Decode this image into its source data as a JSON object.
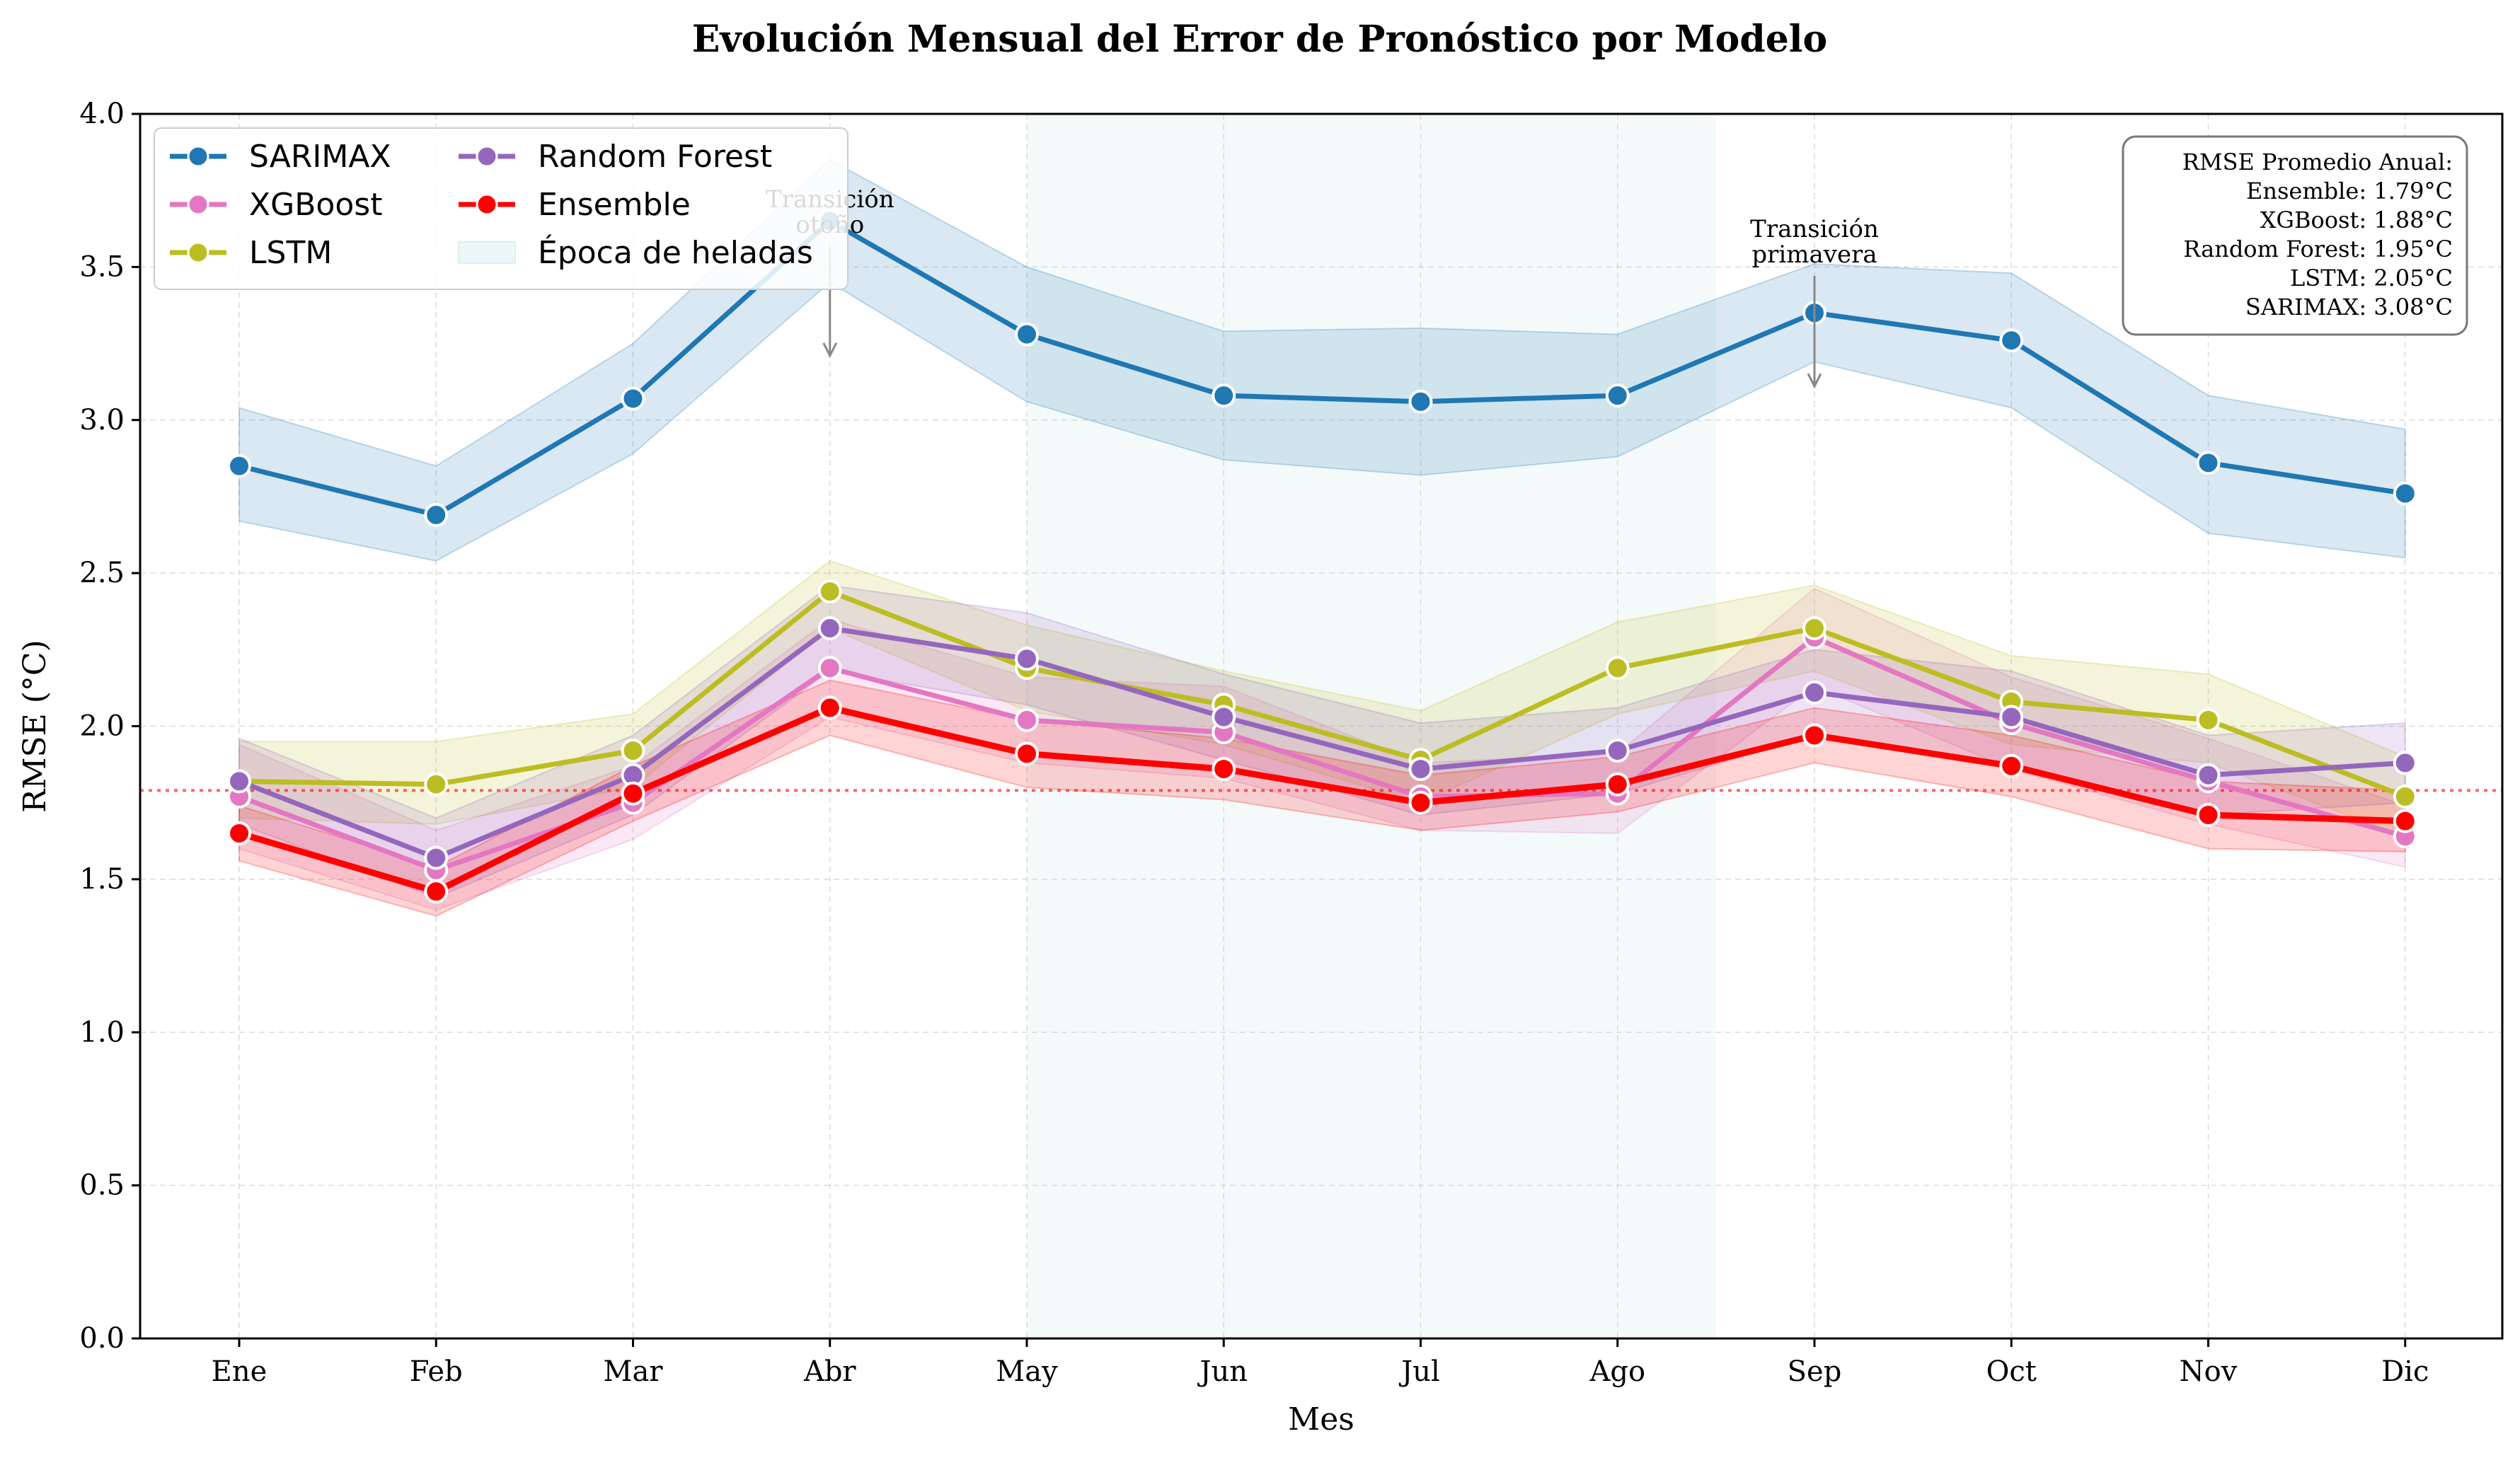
{
  "chart_data": {
    "type": "line",
    "title": "Evolución Mensual del Error de Pronóstico por Modelo",
    "xlabel": "Mes",
    "ylabel": "RMSE (°C)",
    "categories": [
      "Ene",
      "Feb",
      "Mar",
      "Abr",
      "May",
      "Jun",
      "Jul",
      "Ago",
      "Sep",
      "Oct",
      "Nov",
      "Dic"
    ],
    "ylim": [
      0,
      4.0
    ],
    "yticks": [
      "0.0",
      "0.5",
      "1.0",
      "1.5",
      "2.0",
      "2.5",
      "3.0",
      "3.5",
      "4.0"
    ],
    "grid": true,
    "legend_position": "top-left",
    "series": [
      {
        "name": "SARIMAX",
        "color": "#1f77b4",
        "values": [
          2.85,
          2.69,
          3.07,
          3.65,
          3.28,
          3.08,
          3.06,
          3.08,
          3.35,
          3.26,
          2.86,
          2.76
        ],
        "lower": [
          2.67,
          2.54,
          2.89,
          3.45,
          3.06,
          2.87,
          2.82,
          2.88,
          3.19,
          3.04,
          2.63,
          2.55
        ],
        "upper": [
          3.04,
          2.85,
          3.25,
          3.85,
          3.5,
          3.29,
          3.3,
          3.28,
          3.51,
          3.48,
          3.08,
          2.97
        ]
      },
      {
        "name": "XGBoost",
        "color": "#e377c2",
        "values": [
          1.77,
          1.53,
          1.75,
          2.19,
          2.02,
          1.98,
          1.77,
          1.78,
          2.29,
          2.01,
          1.82,
          1.64
        ],
        "lower": [
          1.6,
          1.4,
          1.63,
          2.03,
          1.88,
          1.83,
          1.66,
          1.65,
          2.13,
          1.86,
          1.68,
          1.54
        ],
        "upper": [
          1.94,
          1.66,
          1.87,
          2.35,
          2.16,
          2.13,
          1.88,
          1.91,
          2.45,
          2.16,
          1.96,
          1.74
        ]
      },
      {
        "name": "LSTM",
        "color": "#bcbd22",
        "values": [
          1.82,
          1.81,
          1.92,
          2.44,
          2.19,
          2.07,
          1.89,
          2.19,
          2.32,
          2.08,
          2.02,
          1.77
        ],
        "lower": [
          1.7,
          1.68,
          1.8,
          2.32,
          2.05,
          1.94,
          1.75,
          2.04,
          2.18,
          1.94,
          1.88,
          1.64
        ],
        "upper": [
          1.95,
          1.95,
          2.04,
          2.54,
          2.33,
          2.18,
          2.05,
          2.34,
          2.46,
          2.23,
          2.17,
          1.9
        ]
      },
      {
        "name": "Random Forest",
        "color": "#9467bd",
        "values": [
          1.82,
          1.57,
          1.84,
          2.32,
          2.22,
          2.03,
          1.86,
          1.92,
          2.11,
          2.03,
          1.84,
          1.88
        ],
        "lower": [
          1.68,
          1.44,
          1.71,
          2.18,
          2.07,
          1.89,
          1.71,
          1.78,
          1.97,
          1.88,
          1.71,
          1.75
        ],
        "upper": [
          1.96,
          1.7,
          1.97,
          2.46,
          2.37,
          2.17,
          2.01,
          2.06,
          2.25,
          2.18,
          1.97,
          2.01
        ]
      },
      {
        "name": "Ensemble",
        "color": "#ff0000",
        "values": [
          1.65,
          1.46,
          1.78,
          2.06,
          1.91,
          1.86,
          1.75,
          1.81,
          1.97,
          1.87,
          1.71,
          1.69
        ],
        "lower": [
          1.56,
          1.38,
          1.69,
          1.97,
          1.8,
          1.76,
          1.66,
          1.72,
          1.88,
          1.77,
          1.6,
          1.59
        ],
        "upper": [
          1.74,
          1.54,
          1.87,
          2.15,
          2.02,
          1.96,
          1.84,
          1.9,
          2.06,
          1.97,
          1.82,
          1.79
        ]
      }
    ],
    "reference_line": {
      "y": 1.79,
      "color": "#ff0000",
      "style": "dotted"
    },
    "shaded_region": {
      "label": "Época de heladas",
      "x_start": "May",
      "x_end": "Ago",
      "color": "#e0f2f1"
    },
    "annotations": [
      {
        "text": [
          "Transición",
          "otoño"
        ],
        "x": "Abr",
        "y": 3.21
      },
      {
        "text": [
          "Transición",
          "primavera"
        ],
        "x": "Sep",
        "y": 3.11
      }
    ],
    "summary_box": {
      "lines": [
        "RMSE Promedio Anual:",
        "Ensemble: 1.79°C",
        "XGBoost: 1.88°C",
        "Random Forest: 1.95°C",
        "LSTM: 2.05°C",
        "SARIMAX: 3.08°C"
      ]
    }
  }
}
